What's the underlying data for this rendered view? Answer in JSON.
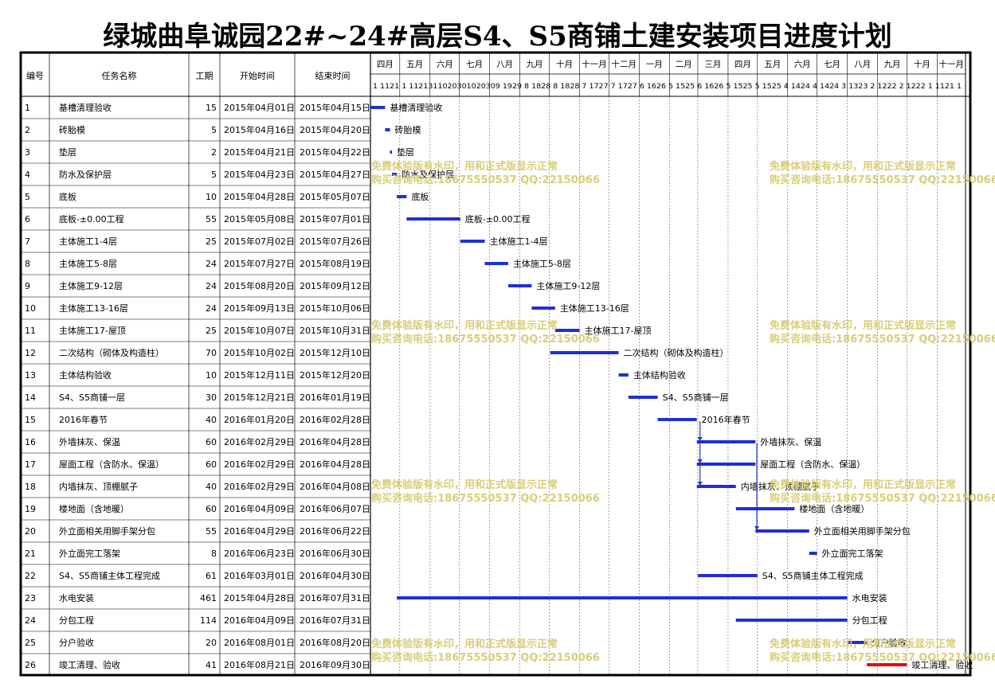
{
  "title": "绿城曲阜诚园22#~24#高层S4、S5商铺土建安装项目进度计划",
  "columns": [
    "编号",
    "任务名称",
    "工期",
    "开始时间",
    "结束时间"
  ],
  "months": [
    "四月",
    "五月",
    "六月",
    "七月",
    "八月",
    "九月",
    "十月",
    "十一月",
    "十二月",
    "一月",
    "二月",
    "三月",
    "四月",
    "五月",
    "六月",
    "七月",
    "八月",
    "九月",
    "十月",
    "十一月"
  ],
  "day_ticks": "1 1121 1 1121311020301020309 1929 8 1828 8 1828 7 1727 7 1727 6 1626 5 1525 6 1626 5 1525 5 1525 4 1424 4 1424 3 1323 2 1222 2 1222 1 1121 1",
  "watermark": [
    "免费体验版有水印，用和正式版显示正常",
    "购买咨询电话:18675550537 QQ:22150066"
  ],
  "colors": {
    "bar": "#1f2fd6",
    "finalBar": "#e01010",
    "finalText": "#e01010",
    "watermark": "#d9cd7a",
    "link": "#1f2fd6"
  },
  "chart_data": {
    "type": "gantt",
    "x_unit": "date",
    "xlim": [
      "2015-04-01",
      "2016-11-30"
    ],
    "tasks": [
      {
        "id": "1",
        "name": "基槽清理验收",
        "duration": 15,
        "start": "2015年04月01日",
        "end": "2015年04月15日",
        "s": "2015-04-01",
        "e": "2015-04-15"
      },
      {
        "id": "2",
        "name": "砖胎模",
        "duration": 5,
        "start": "2015年04月16日",
        "end": "2015年04月20日",
        "s": "2015-04-16",
        "e": "2015-04-20"
      },
      {
        "id": "3",
        "name": "垫层",
        "duration": 2,
        "start": "2015年04月21日",
        "end": "2015年04月22日",
        "s": "2015-04-21",
        "e": "2015-04-22"
      },
      {
        "id": "4",
        "name": "防水及保护层",
        "duration": 5,
        "start": "2015年04月23日",
        "end": "2015年04月27日",
        "s": "2015-04-23",
        "e": "2015-04-27"
      },
      {
        "id": "5",
        "name": "底板",
        "duration": 10,
        "start": "2015年04月28日",
        "end": "2015年05月07日",
        "s": "2015-04-28",
        "e": "2015-05-07"
      },
      {
        "id": "6",
        "name": "底板-±0.00工程",
        "duration": 55,
        "start": "2015年05月08日",
        "end": "2015年07月01日",
        "s": "2015-05-08",
        "e": "2015-07-01"
      },
      {
        "id": "7",
        "name": "主体施工1-4层",
        "duration": 25,
        "start": "2015年07月02日",
        "end": "2015年07月26日",
        "s": "2015-07-02",
        "e": "2015-07-26"
      },
      {
        "id": "8",
        "name": "主体施工5-8层",
        "duration": 24,
        "start": "2015年07月27日",
        "end": "2015年08月19日",
        "s": "2015-07-27",
        "e": "2015-08-19"
      },
      {
        "id": "9",
        "name": "主体施工9-12层",
        "duration": 24,
        "start": "2015年08月20日",
        "end": "2015年09月12日",
        "s": "2015-08-20",
        "e": "2015-09-12"
      },
      {
        "id": "10",
        "name": "主体施工13-16层",
        "duration": 24,
        "start": "2015年09月13日",
        "end": "2015年10月06日",
        "s": "2015-09-13",
        "e": "2015-10-06"
      },
      {
        "id": "11",
        "name": "主体施工17-屋顶",
        "duration": 25,
        "start": "2015年10月07日",
        "end": "2015年10月31日",
        "s": "2015-10-07",
        "e": "2015-10-31"
      },
      {
        "id": "12",
        "name": "二次结构（砌体及构造柱）",
        "duration": 70,
        "start": "2015年10月02日",
        "end": "2015年12月10日",
        "s": "2015-10-02",
        "e": "2015-12-10"
      },
      {
        "id": "13",
        "name": "主体结构验收",
        "duration": 10,
        "start": "2015年12月11日",
        "end": "2015年12月20日",
        "s": "2015-12-11",
        "e": "2015-12-20"
      },
      {
        "id": "14",
        "name": "S4、S5商铺一层",
        "duration": 30,
        "start": "2015年12月21日",
        "end": "2016年01月19日",
        "s": "2015-12-21",
        "e": "2016-01-19"
      },
      {
        "id": "15",
        "name": "2016年春节",
        "duration": 40,
        "start": "2016年01月20日",
        "end": "2016年02月28日",
        "s": "2016-01-20",
        "e": "2016-02-28"
      },
      {
        "id": "16",
        "name": "外墙抹灰、保温",
        "duration": 60,
        "start": "2016年02月29日",
        "end": "2016年04月28日",
        "s": "2016-02-29",
        "e": "2016-04-28"
      },
      {
        "id": "17",
        "name": "屋面工程（含防水、保温）",
        "duration": 60,
        "start": "2016年02月29日",
        "end": "2016年04月28日",
        "s": "2016-02-29",
        "e": "2016-04-28"
      },
      {
        "id": "18",
        "name": "内墙抹灰、顶棚腻子",
        "duration": 40,
        "start": "2016年02月29日",
        "end": "2016年04月08日",
        "s": "2016-02-29",
        "e": "2016-04-08"
      },
      {
        "id": "19",
        "name": "楼地面（含地暖）",
        "duration": 60,
        "start": "2016年04月09日",
        "end": "2016年06月07日",
        "s": "2016-04-09",
        "e": "2016-06-07"
      },
      {
        "id": "20",
        "name": "外立面相关用脚手架分包",
        "duration": 55,
        "start": "2016年04月29日",
        "end": "2016年06月22日",
        "s": "2016-04-29",
        "e": "2016-06-22"
      },
      {
        "id": "21",
        "name": "外立面完工落架",
        "duration": 8,
        "start": "2016年06月23日",
        "end": "2016年06月30日",
        "s": "2016-06-23",
        "e": "2016-06-30"
      },
      {
        "id": "22",
        "name": "S4、S5商铺主体工程完成",
        "duration": 61,
        "start": "2016年03月01日",
        "end": "2016年04月30日",
        "s": "2016-03-01",
        "e": "2016-04-30"
      },
      {
        "id": "23",
        "name": "水电安装",
        "duration": 461,
        "start": "2015年04月28日",
        "end": "2016年07月31日",
        "s": "2015-04-28",
        "e": "2016-07-31"
      },
      {
        "id": "24",
        "name": "分包工程",
        "duration": 114,
        "start": "2016年04月09日",
        "end": "2016年07月31日",
        "s": "2016-04-09",
        "e": "2016-07-31"
      },
      {
        "id": "25",
        "name": "分户验收",
        "duration": 20,
        "start": "2016年08月01日",
        "end": "2016年08月20日",
        "s": "2016-08-01",
        "e": "2016-08-20"
      },
      {
        "id": "26",
        "name": "竣工清理、验收",
        "duration": 41,
        "start": "2016年08月21日",
        "end": "2016年09月30日",
        "s": "2016-08-21",
        "e": "2016-09-30",
        "highlight": true
      }
    ]
  }
}
